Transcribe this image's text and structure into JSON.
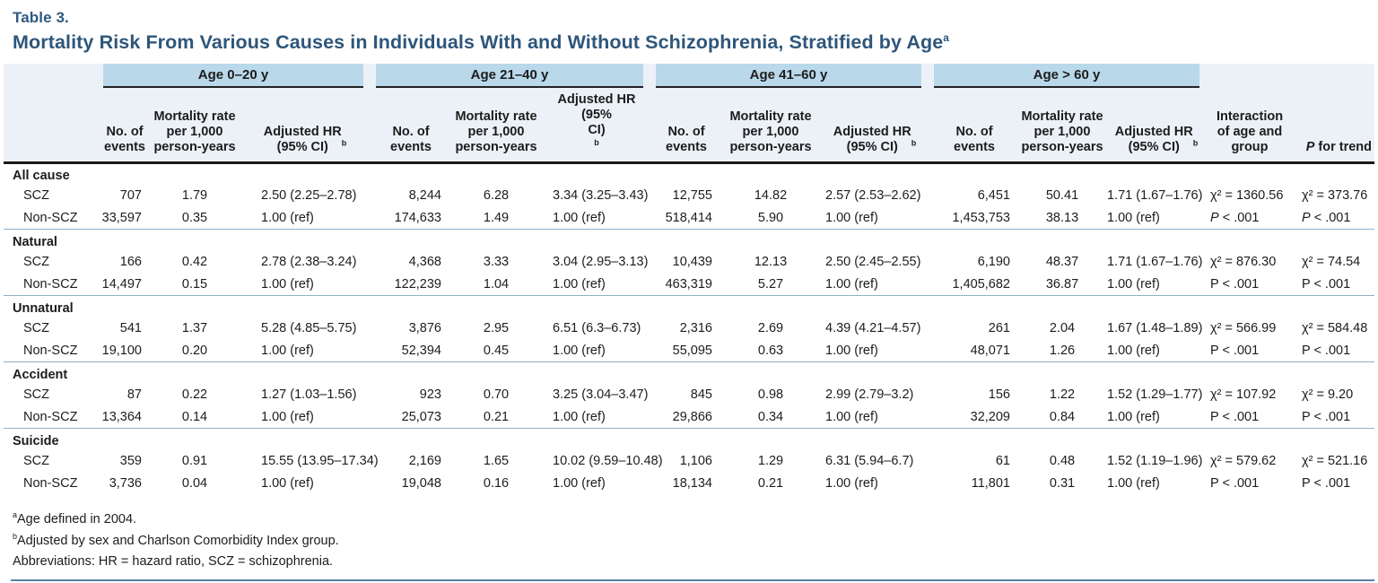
{
  "title": {
    "label": "Table 3.",
    "text": "Mortality Risk From Various Causes in Individuals With and Without Schizophrenia, Stratified by Age",
    "sup": "a"
  },
  "symbols": {
    "p": "P"
  },
  "header": {
    "age_groups": [
      "Age 0–20 y",
      "Age 21–40 y",
      "Age 41–60 y",
      "Age > 60 y"
    ],
    "subcols": {
      "events": "No. of\nevents",
      "rate": "Mortality rate\nper 1,000\nperson-years",
      "hr": [
        "Adjusted HR\n(95% CI)",
        "Adjusted HR (95%\nCI)",
        "Adjusted HR\n(95% CI)",
        "Adjusted HR\n(95% CI)"
      ],
      "hr_sup": "b"
    },
    "interaction": "Interaction\nof age and\ngroup",
    "p_for_trend_rest": " for trend"
  },
  "table": {
    "sections": [
      {
        "label": "All cause",
        "rows": [
          {
            "name": "SCZ",
            "groups": [
              [
                "707",
                "1.79",
                "2.50 (2.25–2.78)"
              ],
              [
                "8,244",
                "6.28",
                "3.34 (3.25–3.43)"
              ],
              [
                "12,755",
                "14.82",
                "2.57 (2.53–2.62)"
              ],
              [
                "6,451",
                "50.41",
                "1.71 (1.67–1.76)"
              ]
            ],
            "interaction": "χ² = 1360.56",
            "trend": "χ² = 373.76"
          },
          {
            "name": "Non-SCZ",
            "groups": [
              [
                "33,597",
                "0.35",
                "1.00 (ref)"
              ],
              [
                "174,633",
                "1.49",
                "1.00 (ref)"
              ],
              [
                "518,414",
                "5.90",
                "1.00 (ref)"
              ],
              [
                "1,453,753",
                "38.13",
                "1.00 (ref)"
              ]
            ],
            "interaction": "P < .001",
            "trend": "P < .001",
            "p_italic": true
          }
        ]
      },
      {
        "label": "Natural",
        "rows": [
          {
            "name": "SCZ",
            "groups": [
              [
                "166",
                "0.42",
                "2.78 (2.38–3.24)"
              ],
              [
                "4,368",
                "3.33",
                "3.04 (2.95–3.13)"
              ],
              [
                "10,439",
                "12.13",
                "2.50 (2.45–2.55)"
              ],
              [
                "6,190",
                "48.37",
                "1.71 (1.67–1.76)"
              ]
            ],
            "interaction": "χ² = 876.30",
            "trend": "χ² = 74.54"
          },
          {
            "name": "Non-SCZ",
            "groups": [
              [
                "14,497",
                "0.15",
                "1.00 (ref)"
              ],
              [
                "122,239",
                "1.04",
                "1.00 (ref)"
              ],
              [
                "463,319",
                "5.27",
                "1.00 (ref)"
              ],
              [
                "1,405,682",
                "36.87",
                "1.00 (ref)"
              ]
            ],
            "interaction": "P < .001",
            "trend": "P < .001"
          }
        ]
      },
      {
        "label": "Unnatural",
        "rows": [
          {
            "name": "SCZ",
            "groups": [
              [
                "541",
                "1.37",
                "5.28 (4.85–5.75)"
              ],
              [
                "3,876",
                "2.95",
                "6.51 (6.3–6.73)"
              ],
              [
                "2,316",
                "2.69",
                "4.39 (4.21–4.57)"
              ],
              [
                "261",
                "2.04",
                "1.67 (1.48–1.89)"
              ]
            ],
            "interaction": "χ² = 566.99",
            "trend": "χ² = 584.48"
          },
          {
            "name": "Non-SCZ",
            "groups": [
              [
                "19,100",
                "0.20",
                "1.00 (ref)"
              ],
              [
                "52,394",
                "0.45",
                "1.00 (ref)"
              ],
              [
                "55,095",
                "0.63",
                "1.00 (ref)"
              ],
              [
                "48,071",
                "1.26",
                "1.00 (ref)"
              ]
            ],
            "interaction": "P < .001",
            "trend": "P < .001"
          }
        ]
      },
      {
        "label": "Accident",
        "rows": [
          {
            "name": "SCZ",
            "groups": [
              [
                "87",
                "0.22",
                "1.27 (1.03–1.56)"
              ],
              [
                "923",
                "0.70",
                "3.25 (3.04–3.47)"
              ],
              [
                "845",
                "0.98",
                "2.99 (2.79–3.2)"
              ],
              [
                "156",
                "1.22",
                "1.52 (1.29–1.77)"
              ]
            ],
            "interaction": "χ² = 107.92",
            "trend": "χ² = 9.20"
          },
          {
            "name": "Non-SCZ",
            "groups": [
              [
                "13,364",
                "0.14",
                "1.00 (ref)"
              ],
              [
                "25,073",
                "0.21",
                "1.00 (ref)"
              ],
              [
                "29,866",
                "0.34",
                "1.00 (ref)"
              ],
              [
                "32,209",
                "0.84",
                "1.00 (ref)"
              ]
            ],
            "interaction": "P < .001",
            "trend": "P < .001"
          }
        ]
      },
      {
        "label": "Suicide",
        "rows": [
          {
            "name": "SCZ",
            "groups": [
              [
                "359",
                "0.91",
                "15.55 (13.95–17.34)"
              ],
              [
                "2,169",
                "1.65",
                "10.02 (9.59–10.48)"
              ],
              [
                "1,106",
                "1.29",
                "6.31 (5.94–6.7)"
              ],
              [
                "61",
                "0.48",
                "1.52 (1.19–1.96)"
              ]
            ],
            "interaction": "χ² = 579.62",
            "trend": "χ² = 521.16"
          },
          {
            "name": "Non-SCZ",
            "groups": [
              [
                "3,736",
                "0.04",
                "1.00 (ref)"
              ],
              [
                "19,048",
                "0.16",
                "1.00 (ref)"
              ],
              [
                "18,134",
                "0.21",
                "1.00 (ref)"
              ],
              [
                "11,801",
                "0.31",
                "1.00 (ref)"
              ]
            ],
            "interaction": "P < .001",
            "trend": "P < .001"
          }
        ]
      }
    ]
  },
  "footnotes": [
    {
      "sup": "a",
      "text": "Age defined in 2004."
    },
    {
      "sup": "b",
      "text": "Adjusted by sex and Charlson Comorbidity Index group."
    },
    {
      "sup": "",
      "text": "Abbreviations: HR = hazard ratio, SCZ = schizophrenia."
    }
  ],
  "colors": {
    "title": "#2e567a",
    "age_band": "#b9d8ea",
    "header_bg": "#ecf1f7",
    "header_rule": "#1a1a1a",
    "section_rule": "#8fb0c9",
    "bottom_rule": "#5a80a6"
  }
}
